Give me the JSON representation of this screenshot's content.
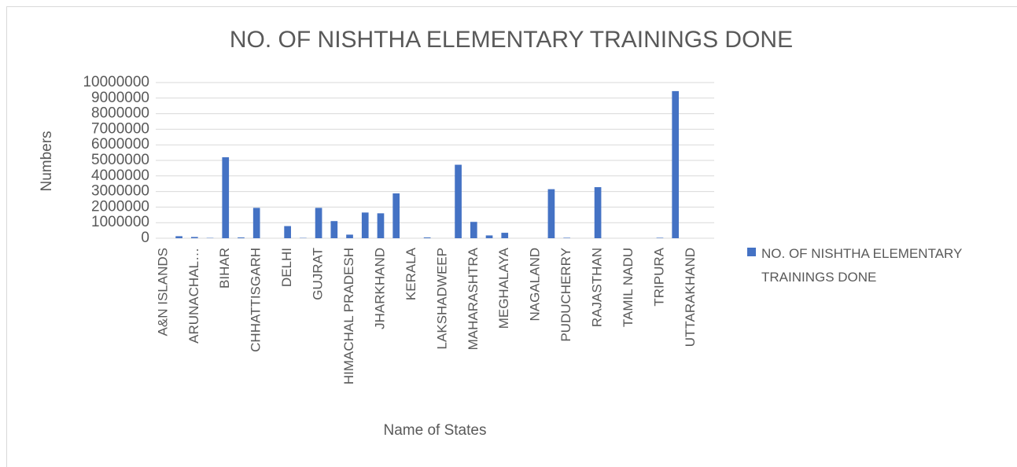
{
  "chart_data": {
    "type": "bar",
    "title": "NO. OF NISHTHA ELEMENTARY TRAININGS DONE",
    "x_label": "Name  of States",
    "y_label": "Numbers",
    "categories": [
      "A&N ISLANDS",
      null,
      "ARUNACHAL…",
      null,
      "BIHAR",
      null,
      "CHHATTISGARH",
      null,
      "DELHI",
      null,
      "GUJRAT",
      null,
      "HIMACHAL PRADESH",
      null,
      "JHARKHAND",
      null,
      "KERALA",
      null,
      "LAKSHADWEEP",
      null,
      "MAHARASHTRA",
      null,
      "MEGHALAYA",
      null,
      "NAGALAND",
      null,
      "PUDUCHERRY",
      null,
      "RAJASTHAN",
      null,
      "TAMIL NADU",
      null,
      "TRIPURA",
      null,
      "UTTARAKHAND",
      null
    ],
    "series": [
      {
        "name": "NO. OF NISHTHA ELEMENTARY TRAININGS DONE",
        "color": "#4472c4",
        "values": [
          0,
          130000,
          80000,
          20000,
          5200000,
          50000,
          1950000,
          0,
          780000,
          20000,
          1950000,
          1100000,
          230000,
          1650000,
          1600000,
          2880000,
          0,
          50000,
          0,
          4720000,
          1050000,
          180000,
          350000,
          0,
          0,
          3150000,
          30000,
          0,
          3280000,
          0,
          0,
          0,
          30000,
          9450000,
          0,
          0
        ]
      }
    ],
    "ylim": [
      0,
      10000000
    ],
    "yticks": [
      0,
      1000000,
      2000000,
      3000000,
      4000000,
      5000000,
      6000000,
      7000000,
      8000000,
      9000000,
      10000000
    ],
    "grid": true,
    "legend": "right"
  }
}
